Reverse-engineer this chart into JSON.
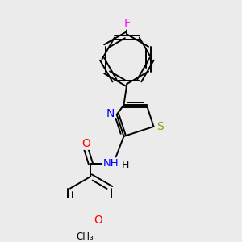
{
  "bg_color": "#ebebeb",
  "bond_color": "#000000",
  "S_color": "#999900",
  "N_color": "#0000ff",
  "O_color": "#ff0000",
  "F_color": "#ff00ff",
  "lw": 1.4,
  "xlim": [
    0,
    10
  ],
  "ylim": [
    0,
    14
  ],
  "figsize": [
    3.0,
    3.0
  ],
  "dpi": 100
}
